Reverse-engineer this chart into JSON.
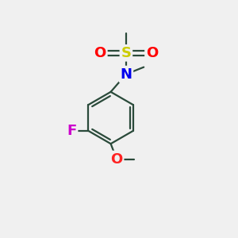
{
  "bg_color": "#f0f0f0",
  "bond_color": "#2a4a3a",
  "atom_colors": {
    "S": "#cccc00",
    "O": "#ff0000",
    "N": "#0000ee",
    "F": "#cc00cc",
    "O_methoxy": "#ff2222"
  },
  "bond_width": 1.6,
  "font_size_atoms": 13,
  "figsize": [
    3.0,
    3.0
  ],
  "dpi": 100,
  "xlim": [
    0,
    10
  ],
  "ylim": [
    0,
    10
  ]
}
